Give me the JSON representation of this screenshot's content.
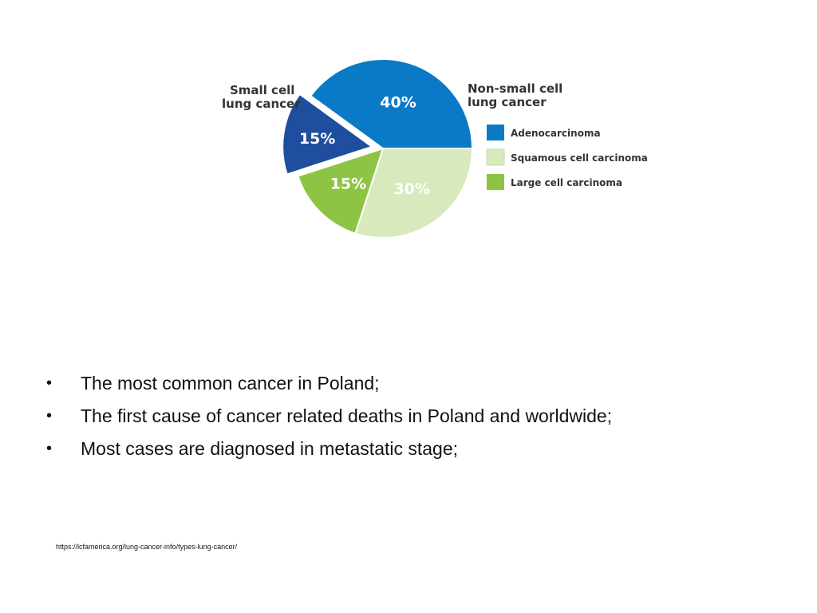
{
  "chart_data": {
    "type": "pie",
    "slices": [
      {
        "label": "Small cell lung cancer",
        "value": 15,
        "text": "15%",
        "color": "#1f4e9e",
        "exploded": true
      },
      {
        "label": "Adenocarcinoma",
        "value": 40,
        "text": "40%",
        "color": "#0a7ac7",
        "exploded": false
      },
      {
        "label": "Squamous cell carcinoma",
        "value": 30,
        "text": "30%",
        "color": "#d8e9bd",
        "exploded": false
      },
      {
        "label": "Large cell carcinoma",
        "value": 15,
        "text": "15%",
        "color": "#8dc444",
        "exploded": false
      }
    ],
    "group_labels": {
      "small_cell": [
        "Small cell",
        "lung cancer"
      ],
      "non_small_cell": [
        "Non-small cell",
        "lung cancer"
      ]
    },
    "legend": [
      {
        "label": "Adenocarcinoma",
        "color": "#0a7ac7"
      },
      {
        "label": "Squamous cell carcinoma",
        "color": "#d8e9bd"
      },
      {
        "label": "Large cell carcinoma",
        "color": "#8dc444"
      }
    ],
    "legend_position": "right"
  },
  "bullets": [
    "The most common cancer in Poland;",
    "The first cause of cancer related deaths in Poland and worldwide;",
    "Most cases are diagnosed in metastatic stage;"
  ],
  "bullet_symbol": "•",
  "source": "https://lcfamerica.org/lung-cancer-info/types-lung-cancer/"
}
